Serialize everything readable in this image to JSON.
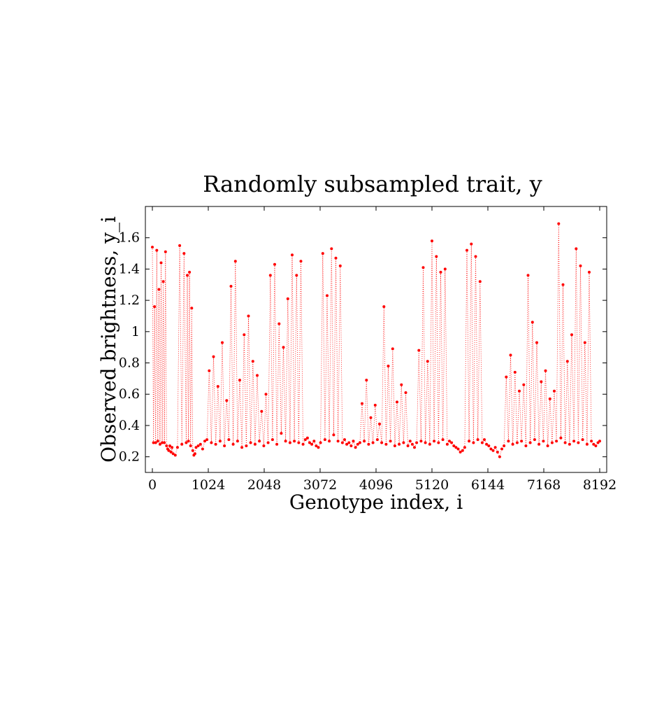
{
  "chart_data": {
    "type": "scatter",
    "title": "Randomly subsampled trait, y",
    "xlabel": "Genotype index, i",
    "ylabel": "Observed brightness, y_i",
    "xlim": [
      -128,
      8320
    ],
    "ylim": [
      0.1,
      1.8
    ],
    "xticks": [
      0,
      1024,
      2048,
      3072,
      4096,
      5120,
      6144,
      7168,
      8192
    ],
    "yticks": [
      0.2,
      0.4,
      0.6,
      0.8,
      1.0,
      1.2,
      1.4,
      1.6
    ],
    "ytick_labels": [
      "0.2",
      "0.4",
      "0.6",
      "0.8",
      "1",
      "1.2",
      "1.4",
      "1.6"
    ],
    "grid": false,
    "marker": "dot",
    "line_style": "dotted",
    "color": "#ff0000",
    "series": [
      {
        "x": [
          0,
          20,
          40,
          60,
          80,
          100,
          120,
          140,
          160,
          180,
          200,
          220,
          240,
          260,
          280,
          300,
          320,
          340,
          360,
          380,
          420,
          460,
          500,
          540,
          580,
          620,
          640,
          660,
          680,
          700,
          720,
          740,
          760,
          780,
          800,
          840,
          880,
          920,
          960,
          1000,
          1040,
          1080,
          1120,
          1160,
          1200,
          1240,
          1280,
          1320,
          1360,
          1400,
          1440,
          1480,
          1520,
          1560,
          1600,
          1640,
          1680,
          1720,
          1760,
          1800,
          1840,
          1880,
          1920,
          1960,
          2000,
          2040,
          2080,
          2120,
          2160,
          2200,
          2240,
          2280,
          2320,
          2360,
          2400,
          2440,
          2480,
          2520,
          2560,
          2600,
          2640,
          2680,
          2720,
          2760,
          2800,
          2840,
          2880,
          2920,
          2960,
          3000,
          3040,
          3080,
          3120,
          3160,
          3200,
          3240,
          3280,
          3320,
          3360,
          3400,
          3440,
          3480,
          3520,
          3560,
          3600,
          3640,
          3680,
          3720,
          3760,
          3800,
          3840,
          3880,
          3920,
          3960,
          4000,
          4040,
          4080,
          4120,
          4160,
          4200,
          4240,
          4280,
          4320,
          4360,
          4400,
          4440,
          4480,
          4520,
          4560,
          4600,
          4640,
          4680,
          4720,
          4760,
          4800,
          4840,
          4880,
          4920,
          4960,
          5000,
          5040,
          5080,
          5120,
          5160,
          5200,
          5240,
          5280,
          5320,
          5360,
          5400,
          5440,
          5480,
          5520,
          5560,
          5600,
          5640,
          5680,
          5720,
          5760,
          5800,
          5840,
          5880,
          5920,
          5960,
          6000,
          6040,
          6080,
          6120,
          6160,
          6200,
          6240,
          6280,
          6320,
          6360,
          6400,
          6440,
          6480,
          6520,
          6560,
          6600,
          6640,
          6680,
          6720,
          6760,
          6800,
          6840,
          6880,
          6920,
          6960,
          7000,
          7040,
          7080,
          7120,
          7160,
          7200,
          7240,
          7280,
          7320,
          7360,
          7400,
          7440,
          7480,
          7520,
          7560,
          7600,
          7640,
          7680,
          7720,
          7760,
          7800,
          7840,
          7880,
          7920,
          7960,
          8000,
          8040,
          8080,
          8120,
          8160,
          8192
        ],
        "y": [
          1.54,
          0.29,
          1.16,
          0.29,
          1.52,
          0.3,
          1.27,
          0.28,
          1.44,
          0.29,
          1.32,
          0.29,
          1.51,
          0.27,
          0.25,
          0.24,
          0.27,
          0.23,
          0.26,
          0.22,
          0.21,
          0.26,
          1.55,
          0.28,
          1.5,
          0.29,
          1.36,
          0.3,
          1.38,
          0.27,
          1.15,
          0.24,
          0.21,
          0.22,
          0.26,
          0.27,
          0.28,
          0.25,
          0.3,
          0.31,
          0.75,
          0.29,
          0.84,
          0.28,
          0.65,
          0.3,
          0.93,
          0.27,
          0.56,
          0.31,
          1.29,
          0.28,
          1.45,
          0.3,
          0.69,
          0.26,
          0.98,
          0.27,
          1.1,
          0.29,
          0.81,
          0.28,
          0.72,
          0.3,
          0.49,
          0.27,
          0.6,
          0.29,
          1.36,
          0.31,
          1.43,
          0.28,
          1.05,
          0.35,
          0.9,
          0.3,
          1.21,
          0.29,
          1.49,
          0.3,
          1.36,
          0.29,
          1.45,
          0.28,
          0.31,
          0.32,
          0.29,
          0.28,
          0.3,
          0.27,
          0.26,
          0.29,
          1.5,
          0.31,
          1.23,
          0.3,
          1.53,
          0.34,
          1.47,
          0.3,
          1.42,
          0.29,
          0.31,
          0.28,
          0.29,
          0.27,
          0.3,
          0.26,
          0.28,
          0.29,
          0.54,
          0.3,
          0.69,
          0.28,
          0.45,
          0.29,
          0.53,
          0.31,
          0.41,
          0.29,
          1.16,
          0.28,
          0.78,
          0.3,
          0.89,
          0.27,
          0.55,
          0.28,
          0.66,
          0.29,
          0.61,
          0.27,
          0.3,
          0.28,
          0.26,
          0.29,
          0.88,
          0.3,
          1.41,
          0.29,
          0.81,
          0.28,
          1.58,
          0.3,
          1.48,
          0.29,
          1.38,
          0.31,
          1.4,
          0.28,
          0.3,
          0.29,
          0.27,
          0.26,
          0.25,
          0.23,
          0.24,
          0.26,
          1.52,
          0.3,
          1.56,
          0.29,
          1.48,
          0.31,
          1.32,
          0.29,
          0.31,
          0.28,
          0.27,
          0.25,
          0.24,
          0.26,
          0.23,
          0.2,
          0.25,
          0.27,
          0.71,
          0.3,
          0.85,
          0.28,
          0.74,
          0.29,
          0.62,
          0.3,
          0.66,
          0.27,
          1.36,
          0.29,
          1.06,
          0.31,
          0.93,
          0.28,
          0.68,
          0.3,
          0.75,
          0.27,
          0.57,
          0.29,
          0.62,
          0.3,
          1.69,
          0.32,
          1.3,
          0.29,
          0.81,
          0.28,
          0.98,
          0.3,
          1.53,
          0.29,
          1.42,
          0.31,
          0.93,
          0.28,
          1.38,
          0.3,
          0.28,
          0.27,
          0.29,
          0.3
        ],
        "note_ignore": ""
      }
    ]
  }
}
